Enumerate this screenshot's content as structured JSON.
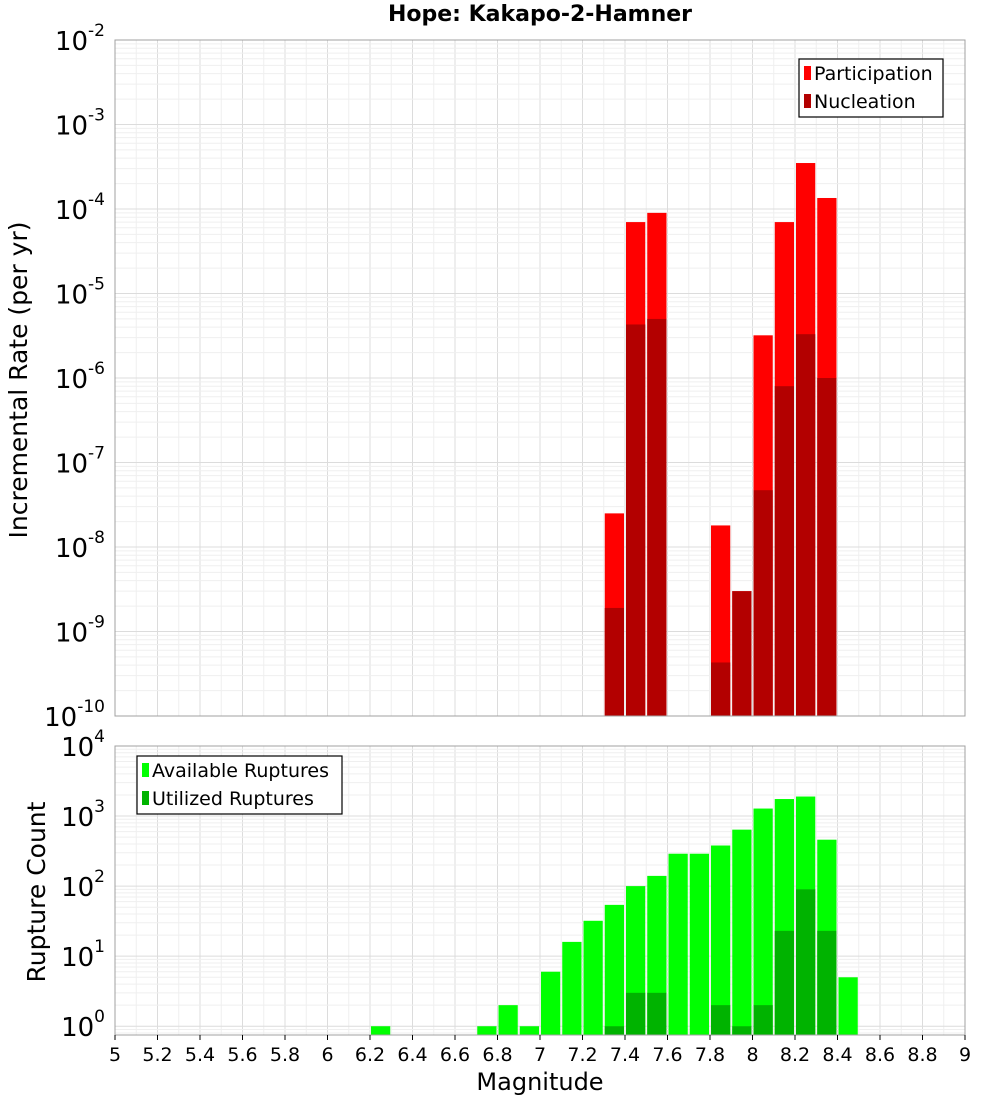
{
  "chart_data": [
    {
      "type": "bar",
      "title": "Hope: Kakapo-2-Hamner",
      "xlabel": "",
      "ylabel": "Incremental Rate (per yr)",
      "yscale": "log",
      "xlim": [
        5,
        9
      ],
      "ylim": [
        1e-10,
        0.01
      ],
      "y_tick_exponents": [
        -10,
        -9,
        -8,
        -7,
        -6,
        -5,
        -4,
        -3,
        -2
      ],
      "grid": true,
      "legend": "top-right",
      "series": [
        {
          "name": "Participation",
          "color": "#ff0000",
          "x": [
            7.35,
            7.45,
            7.55,
            7.85,
            7.95,
            8.05,
            8.15,
            8.25,
            8.35
          ],
          "values": [
            2.5e-08,
            7e-05,
            9e-05,
            1.8e-08,
            3e-09,
            3.2e-06,
            7e-05,
            0.00035,
            0.000135
          ]
        },
        {
          "name": "Nucleation",
          "color": "#b30000",
          "x": [
            7.35,
            7.45,
            7.55,
            7.85,
            7.95,
            8.05,
            8.15,
            8.25,
            8.35
          ],
          "values": [
            1.9e-09,
            4.3e-06,
            5e-06,
            4.3e-10,
            3e-09,
            4.7e-08,
            8e-07,
            3.3e-06,
            1e-06
          ]
        }
      ]
    },
    {
      "type": "bar",
      "title": "",
      "xlabel": "Magnitude",
      "ylabel": "Rupture Count",
      "yscale": "log",
      "xlim": [
        5,
        9
      ],
      "ylim": [
        0.75,
        10000
      ],
      "y_tick_exponents": [
        0,
        1,
        2,
        3,
        4
      ],
      "x_ticks": [
        "5",
        "5.2",
        "5.4",
        "5.6",
        "5.8",
        "6",
        "6.2",
        "6.4",
        "6.6",
        "6.8",
        "7",
        "7.2",
        "7.4",
        "7.6",
        "7.8",
        "8",
        "8.2",
        "8.4",
        "8.6",
        "8.8",
        "9"
      ],
      "grid": true,
      "legend": "top-left",
      "series": [
        {
          "name": "Available Ruptures",
          "color": "#00ff00",
          "x": [
            6.25,
            6.75,
            6.85,
            6.95,
            7.05,
            7.15,
            7.25,
            7.35,
            7.45,
            7.55,
            7.65,
            7.75,
            7.85,
            7.95,
            8.05,
            8.15,
            8.25,
            8.35,
            8.45
          ],
          "values": [
            1,
            1,
            2,
            1,
            6,
            16,
            32,
            54,
            100,
            140,
            290,
            290,
            380,
            640,
            1280,
            1750,
            1900,
            460,
            5
          ]
        },
        {
          "name": "Utilized Ruptures",
          "color": "#00b300",
          "x": [
            7.35,
            7.45,
            7.55,
            7.85,
            7.95,
            8.05,
            8.15,
            8.25,
            8.35
          ],
          "values": [
            1,
            3,
            3,
            2,
            1,
            2,
            23,
            90,
            23
          ]
        }
      ]
    }
  ]
}
